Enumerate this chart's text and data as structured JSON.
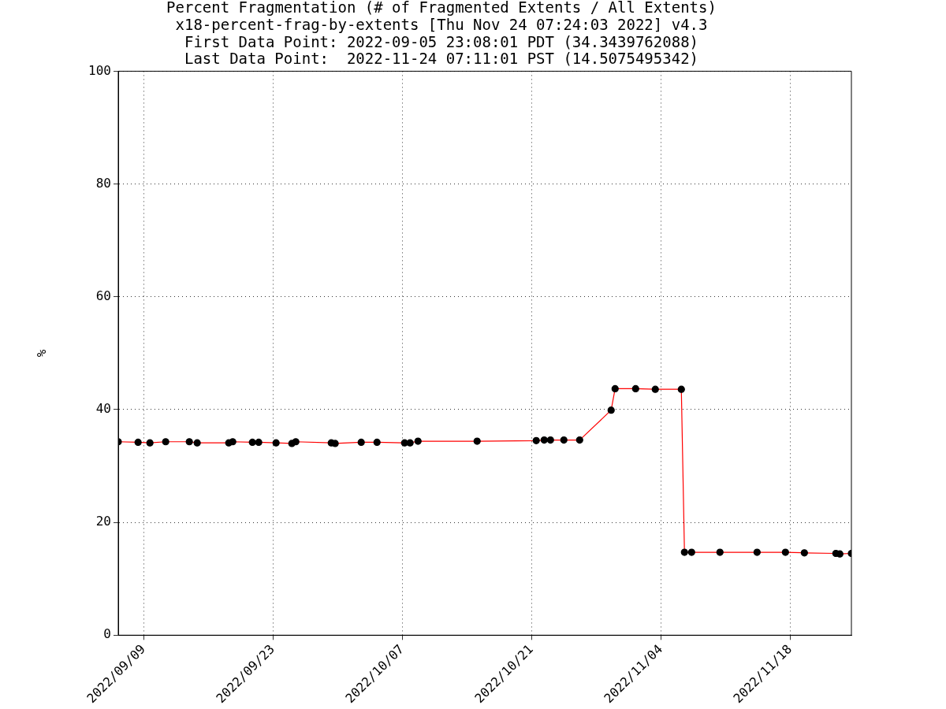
{
  "chart_data": {
    "type": "line",
    "title": "Percent Fragmentation (# of Fragmented Extents / All Extents)",
    "subtitle": "x18-percent-frag-by-extents [Thu Nov 24 07:24:03 2022] v4.3\nFirst Data Point: 2022-09-05 23:08:01 PDT (34.3439762088)\nLast Data Point:  2022-11-24 07:11:01 PST (14.5075495342)",
    "ylabel": "%",
    "x": [
      "2022-09-06T06:08",
      "2022-09-08T09:40",
      "2022-09-09T16:24",
      "2022-09-11T09:22",
      "2022-09-13T22:50",
      "2022-09-14T19:16",
      "2022-09-18T05:17",
      "2022-09-18T15:35",
      "2022-09-20T18:43",
      "2022-09-21T11:04",
      "2022-09-23T08:10",
      "2022-09-25T01:12",
      "2022-09-25T11:30",
      "2022-09-29T07:40",
      "2022-09-29T17:46",
      "2022-10-02T13:26",
      "2022-10-04T06:29",
      "2022-10-07T06:14",
      "2022-10-07T20:24",
      "2022-10-08T17:02",
      "2022-10-15T02:38",
      "2022-10-21T12:14",
      "2022-10-22T08:53",
      "2022-10-23T01:12",
      "2022-10-24T12:00",
      "2022-10-26T05:02",
      "2022-10-29T14:53",
      "2022-10-30T01:12",
      "2022-11-01T06:29",
      "2022-11-03T09:36",
      "2022-11-06T05:17",
      "2022-11-06T13:26",
      "2022-11-07T07:55",
      "2022-11-10T09:36",
      "2022-11-14T10:05",
      "2022-11-17T11:46",
      "2022-11-19T12:58",
      "2022-11-22T22:48",
      "2022-11-23T09:07",
      "2022-11-24T15:11"
    ],
    "series": [
      {
        "color": "#ff0000",
        "values": [
          34.3,
          34.2,
          34.1,
          34.3,
          34.3,
          34.1,
          34.1,
          34.3,
          34.2,
          34.2,
          34.1,
          34.0,
          34.3,
          34.1,
          34.0,
          34.2,
          34.2,
          34.1,
          34.1,
          34.4,
          34.4,
          34.5,
          34.6,
          34.6,
          34.6,
          34.6,
          39.9,
          43.7,
          43.7,
          43.6,
          43.6,
          14.7,
          14.7,
          14.7,
          14.7,
          14.7,
          14.6,
          14.5,
          14.4,
          14.5
        ]
      }
    ],
    "xlim": [
      "2022-09-06T06:08",
      "2022-11-24T15:11"
    ],
    "xticks": [
      {
        "value": "2022-09-09",
        "label": "2022/09/09"
      },
      {
        "value": "2022-09-23",
        "label": "2022/09/23"
      },
      {
        "value": "2022-10-07",
        "label": "2022/10/07"
      },
      {
        "value": "2022-10-21",
        "label": "2022/10/21"
      },
      {
        "value": "2022-11-04",
        "label": "2022/11/04"
      },
      {
        "value": "2022-11-18",
        "label": "2022/11/18"
      }
    ],
    "ylim": [
      0,
      100
    ],
    "yticks": [
      0,
      20,
      40,
      60,
      80,
      100
    ],
    "grid": true,
    "marker": "circle",
    "line_style": "solid"
  }
}
